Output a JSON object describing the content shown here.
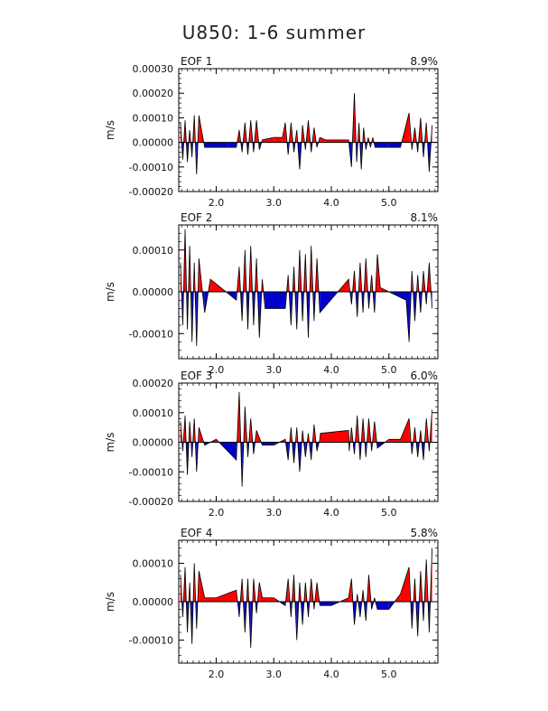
{
  "title": "U850: 1-6 summer",
  "colors": {
    "positive": "#ff0000",
    "negative": "#0000cc",
    "line": "#000000"
  },
  "chart_data": [
    {
      "type": "area",
      "name": "EOF 1",
      "label": "EOF 1",
      "variance": "8.9%",
      "ylabel": "m/s",
      "xlim": [
        1.35,
        5.85
      ],
      "ylim": [
        -0.0002,
        0.0003
      ],
      "yticks": [
        -0.0002,
        -0.0001,
        0.0,
        0.0001,
        0.0002,
        0.0003
      ],
      "ytick_labels": [
        "-0.00020",
        "-0.00010",
        "0.00000",
        "0.00010",
        "0.00020",
        "0.00030"
      ],
      "xticks": [
        2.0,
        3.0,
        4.0,
        5.0
      ],
      "xtick_labels": [
        "2.0",
        "3.0",
        "4.0",
        "5.0"
      ],
      "x": [
        1.38,
        1.42,
        1.46,
        1.5,
        1.54,
        1.58,
        1.62,
        1.66,
        1.7,
        1.8,
        2.0,
        2.2,
        2.35,
        2.4,
        2.45,
        2.5,
        2.55,
        2.6,
        2.65,
        2.7,
        2.75,
        2.8,
        3.0,
        3.15,
        3.2,
        3.25,
        3.3,
        3.35,
        3.4,
        3.45,
        3.5,
        3.55,
        3.6,
        3.65,
        3.7,
        3.75,
        3.8,
        3.9,
        4.1,
        4.3,
        4.35,
        4.4,
        4.44,
        4.48,
        4.52,
        4.56,
        4.6,
        4.64,
        4.68,
        4.72,
        4.76,
        4.8,
        5.0,
        5.2,
        5.35,
        5.4,
        5.45,
        5.5,
        5.55,
        5.6,
        5.65,
        5.7,
        5.75
      ],
      "y": [
        8e-05,
        -7e-05,
        9e-05,
        -8e-05,
        5e-05,
        -6e-05,
        0.00011,
        -0.00013,
        0.00011,
        -2e-05,
        -2e-05,
        -2e-05,
        -2e-05,
        5e-05,
        -4e-05,
        8e-05,
        -5e-05,
        9e-05,
        -4e-05,
        9e-05,
        -3e-05,
        1e-05,
        2e-05,
        2e-05,
        8e-05,
        -5e-05,
        8e-05,
        -4e-05,
        5e-05,
        -0.00011,
        7e-05,
        -3e-05,
        9e-05,
        -4e-05,
        6e-05,
        -2e-05,
        2e-05,
        1e-05,
        1e-05,
        1e-05,
        -0.0001,
        0.0002,
        -8e-05,
        8e-05,
        -0.00011,
        6e-05,
        -3e-05,
        2e-05,
        -2e-05,
        2e-05,
        -2e-05,
        -2e-05,
        -2e-05,
        -2e-05,
        0.00012,
        -3e-05,
        6e-05,
        -4e-05,
        0.0001,
        -6e-05,
        8e-05,
        -0.00012,
        7e-05
      ]
    },
    {
      "type": "area",
      "name": "EOF 2",
      "label": "EOF 2",
      "variance": "8.1%",
      "ylabel": "m/s",
      "xlim": [
        1.35,
        5.85
      ],
      "ylim": [
        -0.00016,
        0.00016
      ],
      "yticks": [
        -0.0001,
        0.0,
        0.0001
      ],
      "ytick_labels": [
        "-0.00010",
        "0.00000",
        "0.00010"
      ],
      "xticks": [
        2.0,
        3.0,
        4.0,
        5.0
      ],
      "xtick_labels": [
        "2.0",
        "3.0",
        "4.0",
        "5.0"
      ],
      "x": [
        1.38,
        1.42,
        1.46,
        1.5,
        1.54,
        1.58,
        1.62,
        1.66,
        1.7,
        1.8,
        1.9,
        2.35,
        2.4,
        2.45,
        2.5,
        2.55,
        2.6,
        2.65,
        2.7,
        2.75,
        2.8,
        2.85,
        3.2,
        3.25,
        3.3,
        3.35,
        3.4,
        3.45,
        3.5,
        3.55,
        3.6,
        3.65,
        3.7,
        3.75,
        3.8,
        4.3,
        4.35,
        4.4,
        4.45,
        4.5,
        4.55,
        4.6,
        4.65,
        4.7,
        4.75,
        4.8,
        4.85,
        5.3,
        5.35,
        5.4,
        5.45,
        5.5,
        5.55,
        5.6,
        5.65,
        5.7,
        5.75
      ],
      "y": [
        7e-05,
        -8e-05,
        0.00015,
        -9e-05,
        0.00011,
        -0.00012,
        7e-05,
        -0.00013,
        8e-05,
        -5e-05,
        3e-05,
        -2e-05,
        6e-05,
        -7e-05,
        0.0001,
        -9e-05,
        0.00011,
        -8e-05,
        8e-05,
        -0.00011,
        3e-05,
        -4e-05,
        -4e-05,
        4e-05,
        -8e-05,
        6e-05,
        -9e-05,
        0.0001,
        -7e-05,
        9e-05,
        -0.00011,
        0.00011,
        -7e-05,
        8e-05,
        -5e-05,
        3e-05,
        -3e-05,
        5e-05,
        -6e-05,
        7e-05,
        -5e-05,
        8e-05,
        -4e-05,
        4e-05,
        -5e-05,
        9e-05,
        1e-05,
        -2e-05,
        -0.00012,
        5e-05,
        -7e-05,
        4e-05,
        -5e-05,
        5e-05,
        -3e-05,
        7e-05,
        -4e-05
      ]
    },
    {
      "type": "area",
      "name": "EOF 3",
      "label": "EOF 3",
      "variance": "6.0%",
      "ylabel": "m/s",
      "xlim": [
        1.35,
        5.85
      ],
      "ylim": [
        -0.0002,
        0.0002
      ],
      "yticks": [
        -0.0002,
        -0.0001,
        0.0,
        0.0001,
        0.0002
      ],
      "ytick_labels": [
        "-0.00020",
        "-0.00010",
        "0.00000",
        "0.00010",
        "0.00020"
      ],
      "xticks": [
        2.0,
        3.0,
        4.0,
        5.0
      ],
      "xtick_labels": [
        "2.0",
        "3.0",
        "4.0",
        "5.0"
      ],
      "x": [
        1.38,
        1.42,
        1.46,
        1.5,
        1.54,
        1.58,
        1.62,
        1.66,
        1.7,
        1.8,
        2.0,
        2.35,
        2.4,
        2.45,
        2.5,
        2.55,
        2.6,
        2.65,
        2.7,
        2.8,
        3.0,
        3.2,
        3.25,
        3.3,
        3.35,
        3.4,
        3.45,
        3.5,
        3.55,
        3.6,
        3.65,
        3.7,
        3.75,
        3.8,
        3.81,
        4.3,
        4.31,
        4.35,
        4.4,
        4.45,
        4.5,
        4.55,
        4.6,
        4.65,
        4.7,
        4.75,
        4.8,
        5.0,
        5.2,
        5.35,
        5.4,
        5.45,
        5.5,
        5.55,
        5.6,
        5.65,
        5.7,
        5.75
      ],
      "y": [
        7e-05,
        -3e-05,
        9e-05,
        -0.00011,
        7e-05,
        -5e-05,
        8e-05,
        -0.0001,
        5e-05,
        -1e-05,
        1e-05,
        -6e-05,
        0.00017,
        -0.00015,
        0.00012,
        -5e-05,
        8e-05,
        -4e-05,
        4e-05,
        -1e-05,
        -1e-05,
        1e-05,
        -6e-05,
        5e-05,
        -7e-05,
        5e-05,
        -0.0001,
        4e-05,
        -5e-05,
        3e-05,
        -6e-05,
        6e-05,
        -3e-05,
        1e-05,
        3e-05,
        4e-05,
        -3e-05,
        5e-05,
        -4e-05,
        9e-05,
        -6e-05,
        8e-05,
        -5e-05,
        8e-05,
        -3e-05,
        7e-05,
        -2e-05,
        1e-05,
        1e-05,
        8e-05,
        -4e-05,
        5e-05,
        -5e-05,
        4e-05,
        -6e-05,
        8e-05,
        -3e-05,
        0.00011
      ]
    },
    {
      "type": "area",
      "name": "EOF 4",
      "label": "EOF 4",
      "variance": "5.8%",
      "ylabel": "m/s",
      "xlim": [
        1.35,
        5.85
      ],
      "ylim": [
        -0.00016,
        0.00016
      ],
      "yticks": [
        -0.0001,
        0.0,
        0.0001
      ],
      "ytick_labels": [
        "-0.00010",
        "0.00000",
        "0.00010"
      ],
      "xticks": [
        2.0,
        3.0,
        4.0,
        5.0
      ],
      "xtick_labels": [
        "2.0",
        "3.0",
        "4.0",
        "5.0"
      ],
      "x": [
        1.38,
        1.42,
        1.46,
        1.5,
        1.54,
        1.58,
        1.62,
        1.66,
        1.7,
        1.8,
        2.0,
        2.35,
        2.4,
        2.45,
        2.5,
        2.55,
        2.6,
        2.65,
        2.7,
        2.75,
        2.8,
        3.0,
        3.2,
        3.25,
        3.3,
        3.35,
        3.4,
        3.45,
        3.5,
        3.55,
        3.6,
        3.65,
        3.7,
        3.75,
        3.8,
        4.0,
        4.3,
        4.35,
        4.4,
        4.45,
        4.5,
        4.55,
        4.6,
        4.65,
        4.7,
        4.75,
        4.8,
        5.0,
        5.2,
        5.35,
        5.4,
        5.45,
        5.5,
        5.55,
        5.6,
        5.65,
        5.7,
        5.75
      ],
      "y": [
        7e-05,
        -4e-05,
        9e-05,
        -8e-05,
        5e-05,
        -0.00011,
        0.0001,
        -7e-05,
        8e-05,
        1e-05,
        1e-05,
        3e-05,
        -4e-05,
        6e-05,
        -8e-05,
        6e-05,
        -0.00012,
        6e-05,
        -3e-05,
        5e-05,
        1e-05,
        1e-05,
        -1e-05,
        6e-05,
        -4e-05,
        7e-05,
        -0.0001,
        5e-05,
        -6e-05,
        5e-05,
        -4e-05,
        6e-05,
        -2e-05,
        5e-05,
        -1e-05,
        -1e-05,
        1e-05,
        6e-05,
        -6e-05,
        2e-05,
        -4e-05,
        3e-05,
        -5e-05,
        7e-05,
        -2e-05,
        1e-05,
        -2e-05,
        -2e-05,
        2e-05,
        9e-05,
        -7e-05,
        6e-05,
        -9e-05,
        8e-05,
        -5e-05,
        0.00011,
        -8e-05,
        0.00014
      ]
    }
  ]
}
